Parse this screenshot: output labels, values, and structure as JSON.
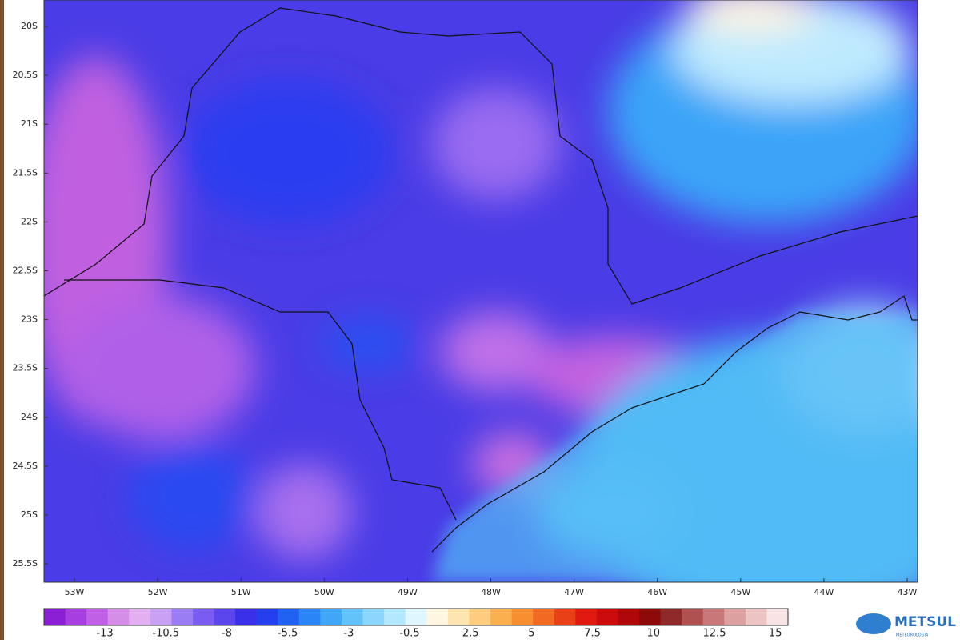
{
  "map": {
    "lat_labels": [
      "20S",
      "20.5S",
      "21S",
      "21.5S",
      "22S",
      "22.5S",
      "23S",
      "23.5S",
      "24S",
      "24.5S",
      "25S",
      "25.5S"
    ],
    "lon_labels": [
      "53W",
      "52W",
      "51W",
      "50W",
      "49W",
      "48W",
      "47W",
      "46W",
      "45W",
      "44W",
      "43W"
    ],
    "colorbar": {
      "labels": [
        "-13",
        "-10.5",
        "-8",
        "-5.5",
        "-3",
        "-0.5",
        "2.5",
        "5",
        "7.5",
        "10",
        "12.5",
        "15"
      ],
      "colors": [
        "#8a1fd6",
        "#a63ee0",
        "#c060e6",
        "#d48ee8",
        "#e2b0ee",
        "#c8a0f4",
        "#9a7cf4",
        "#7a5cf0",
        "#5a46ec",
        "#3a30ea",
        "#2440ee",
        "#2262f2",
        "#2a86f6",
        "#40a6f8",
        "#62c2fa",
        "#8ad6fc",
        "#b4e8fe",
        "#e0f6fe",
        "#fff6e2",
        "#fee4b0",
        "#fdcc7e",
        "#fbb050",
        "#f78e30",
        "#f26a22",
        "#ea4018",
        "#e01a10",
        "#cc0c0c",
        "#b0080a",
        "#8c0a0a",
        "#902a2a",
        "#b05050",
        "#c87878",
        "#dca0a0",
        "#ecc4c4",
        "#f8e4e4"
      ]
    },
    "logo": {
      "name": "METSUL",
      "tagline": "METEOROLOGIA"
    }
  }
}
